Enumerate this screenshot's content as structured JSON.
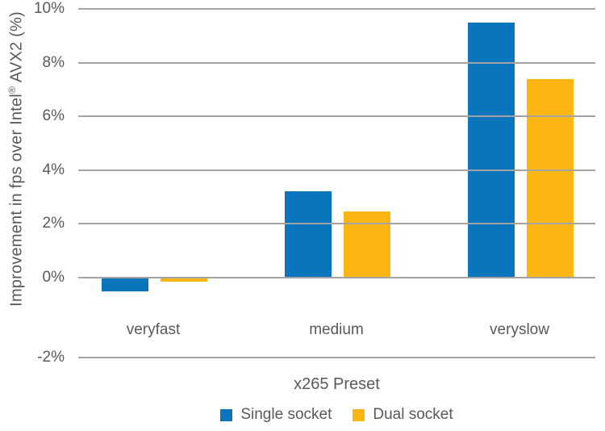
{
  "chart_data": {
    "type": "bar",
    "title": "",
    "xlabel": "x265 Preset",
    "ylabel": "Improvement in fps over Intel® AVX2 (%)",
    "ylabel_parts": {
      "pre": "Improvement in fps over Intel",
      "reg": "®",
      "post": " AVX2 (%)"
    },
    "categories": [
      "veryfast",
      "medium",
      "veryslow"
    ],
    "series": [
      {
        "name": "Single socket",
        "color": "#0a75bc",
        "values": [
          -0.5,
          3.2,
          9.5
        ]
      },
      {
        "name": "Dual socket",
        "color": "#fcb614",
        "values": [
          -0.15,
          2.45,
          7.4
        ]
      }
    ],
    "y_ticks": [
      10,
      8,
      6,
      4,
      2,
      0,
      -2
    ],
    "y_tick_labels": [
      "10%",
      "8%",
      "6%",
      "4%",
      "2%",
      "0%",
      "-2%"
    ],
    "ylim": [
      -2,
      10
    ],
    "grid": true,
    "legend_position": "bottom",
    "legend_labels": [
      "Single socket",
      "Dual socket"
    ],
    "text_color": "#595959",
    "gridline_color": "#a3a3a3",
    "background_color": "#ffffff"
  }
}
